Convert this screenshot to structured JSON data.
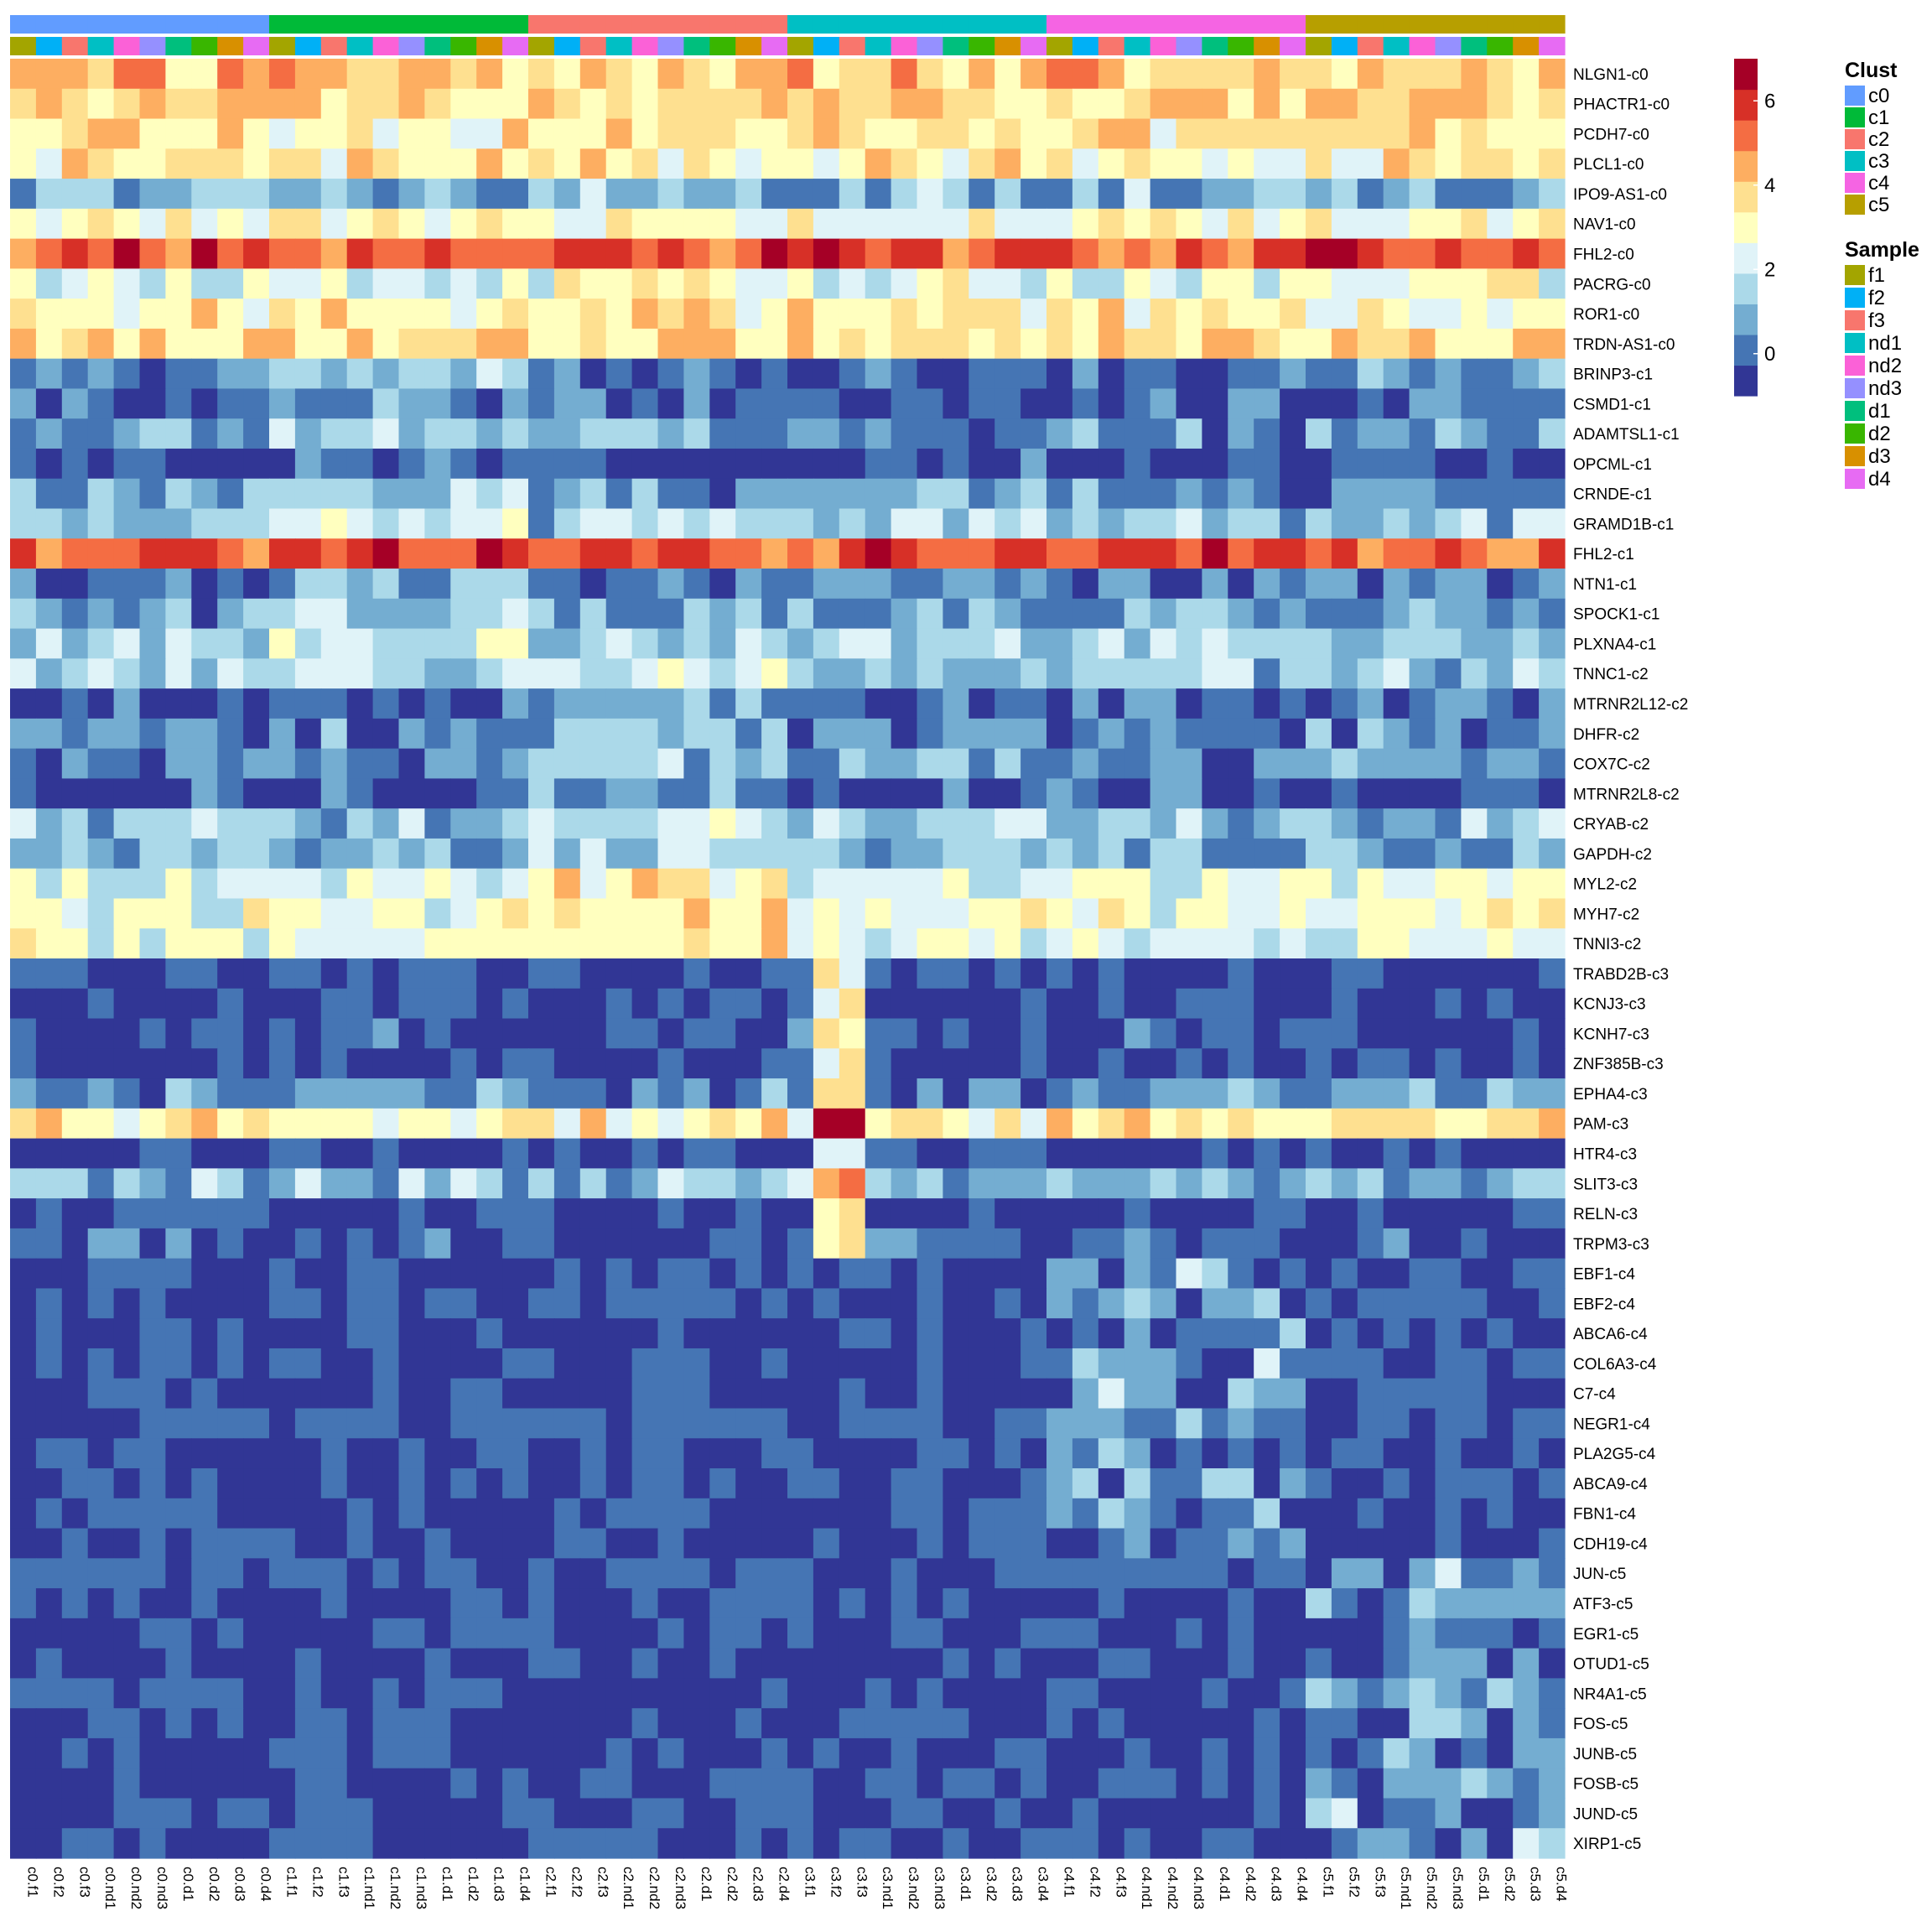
{
  "chart_data": {
    "type": "heatmap",
    "title": "",
    "color_scale": {
      "min": -1.0,
      "max": 7.0,
      "ticks": [
        0,
        2,
        4,
        6
      ],
      "colors": [
        "#313695",
        "#4575b4",
        "#74add1",
        "#abd9e9",
        "#e0f3f8",
        "#ffffbf",
        "#fee090",
        "#fdae61",
        "#f46d43",
        "#d73027",
        "#a50026"
      ]
    },
    "legend": {
      "cluster_title": "Clust",
      "clusters": [
        {
          "name": "c0",
          "color": "#619cff"
        },
        {
          "name": "c1",
          "color": "#00ba38"
        },
        {
          "name": "c2",
          "color": "#f8766d"
        },
        {
          "name": "c3",
          "color": "#00bfc4"
        },
        {
          "name": "c4",
          "color": "#f564e3"
        },
        {
          "name": "c5",
          "color": "#b79f00"
        }
      ],
      "sample_title": "Sample",
      "samples": [
        {
          "name": "f1",
          "color": "#a3a500"
        },
        {
          "name": "f2",
          "color": "#00b0f6"
        },
        {
          "name": "f3",
          "color": "#f8766d"
        },
        {
          "name": "nd1",
          "color": "#00bfc4"
        },
        {
          "name": "nd2",
          "color": "#fb61d7"
        },
        {
          "name": "nd3",
          "color": "#9590ff"
        },
        {
          "name": "d1",
          "color": "#00bf7d"
        },
        {
          "name": "d2",
          "color": "#39b600"
        },
        {
          "name": "d3",
          "color": "#d89000"
        },
        {
          "name": "d4",
          "color": "#e76bf3"
        }
      ]
    },
    "columns": [
      "c0.f1",
      "c0.f2",
      "c0.f3",
      "c0.nd1",
      "c0.nd2",
      "c0.nd3",
      "c0.d1",
      "c0.d2",
      "c0.d3",
      "c0.d4",
      "c1.f1",
      "c1.f2",
      "c1.f3",
      "c1.nd1",
      "c1.nd2",
      "c1.nd3",
      "c1.d1",
      "c1.d2",
      "c1.d3",
      "c1.d4",
      "c2.f1",
      "c2.f2",
      "c2.f3",
      "c2.nd1",
      "c2.nd2",
      "c2.nd3",
      "c2.d1",
      "c2.d2",
      "c2.d3",
      "c2.d4",
      "c3.f1",
      "c3.f2",
      "c3.f3",
      "c3.nd1",
      "c3.nd2",
      "c3.nd3",
      "c3.d1",
      "c3.d2",
      "c3.d3",
      "c3.d4",
      "c4.f1",
      "c4.f2",
      "c4.f3",
      "c4.nd1",
      "c4.nd2",
      "c4.nd3",
      "c4.d1",
      "c4.d2",
      "c4.d3",
      "c4.d4",
      "c5.f1",
      "c5.f2",
      "c5.f3",
      "c5.nd1",
      "c5.nd2",
      "c5.nd3",
      "c5.d1",
      "c5.d2",
      "c5.d3",
      "c5.d4"
    ],
    "rows": [
      {
        "gene": "NLGN1-c0",
        "base": 4.2
      },
      {
        "gene": "PHACTR1-c0",
        "base": 3.8
      },
      {
        "gene": "PCDH7-c0",
        "base": 3.5
      },
      {
        "gene": "PLCL1-c0",
        "base": 3.4
      },
      {
        "gene": "IPO9-AS1-c0",
        "base": 0.8
      },
      {
        "gene": "NAV1-c0",
        "base": 3.0
      },
      {
        "gene": "FHL2-c0",
        "base": 5.8
      },
      {
        "gene": "PACRG-c0",
        "base": 2.6
      },
      {
        "gene": "ROR1-c0",
        "base": 3.4
      },
      {
        "gene": "TRDN-AS1-c0",
        "base": 3.8
      },
      {
        "gene": "BRINP3-c1",
        "base": 0.0
      },
      {
        "gene": "CSMD1-c1",
        "base": -0.6
      },
      {
        "gene": "ADAMTSL1-c1",
        "base": 0.3
      },
      {
        "gene": "OPCML-c1",
        "base": -0.8
      },
      {
        "gene": "CRNDE-c1",
        "base": 0.3
      },
      {
        "gene": "GRAMD1B-c1",
        "base": 1.2
      },
      {
        "gene": "FHL2-c1",
        "base": 5.6
      },
      {
        "gene": "NTN1-c1",
        "base": 0.0
      },
      {
        "gene": "SPOCK1-c1",
        "base": 0.4
      },
      {
        "gene": "PLXNA4-c1",
        "base": 1.4
      },
      {
        "gene": "TNNC1-c2",
        "base": 1.2
      },
      {
        "gene": "MTRNR2L12-c2",
        "base": -0.4
      },
      {
        "gene": "DHFR-c2",
        "base": 0.0
      },
      {
        "gene": "COX7C-c2",
        "base": 0.2
      },
      {
        "gene": "MTRNR2L8-c2",
        "base": -0.6
      },
      {
        "gene": "CRYAB-c2",
        "base": 1.0
      },
      {
        "gene": "GAPDH-c2",
        "base": 0.6
      },
      {
        "gene": "MYL2-c2",
        "base": 2.2
      },
      {
        "gene": "MYH7-c2",
        "base": 2.6
      },
      {
        "gene": "TNNI3-c2",
        "base": 2.4
      },
      {
        "gene": "TRABD2B-c3",
        "base": -0.9
      },
      {
        "gene": "KCNJ3-c3",
        "base": -0.9
      },
      {
        "gene": "KCNH7-c3",
        "base": -0.8
      },
      {
        "gene": "ZNF385B-c3",
        "base": -0.9
      },
      {
        "gene": "EPHA4-c3",
        "base": 0.2
      },
      {
        "gene": "PAM-c3",
        "base": 3.4
      },
      {
        "gene": "HTR4-c3",
        "base": -0.8
      },
      {
        "gene": "SLIT3-c3",
        "base": 0.8
      },
      {
        "gene": "RELN-c3",
        "base": -0.9
      },
      {
        "gene": "TRPM3-c3",
        "base": -0.6
      },
      {
        "gene": "EBF1-c4",
        "base": -0.8
      },
      {
        "gene": "EBF2-c4",
        "base": -0.8
      },
      {
        "gene": "ABCA6-c4",
        "base": -0.8
      },
      {
        "gene": "COL6A3-c4",
        "base": -0.8
      },
      {
        "gene": "C7-c4",
        "base": -0.8
      },
      {
        "gene": "NEGR1-c4",
        "base": -0.7
      },
      {
        "gene": "PLA2G5-c4",
        "base": -0.7
      },
      {
        "gene": "ABCA9-c4",
        "base": -0.8
      },
      {
        "gene": "FBN1-c4",
        "base": -0.8
      },
      {
        "gene": "CDH19-c4",
        "base": -0.8
      },
      {
        "gene": "JUN-c5",
        "base": -0.5
      },
      {
        "gene": "ATF3-c5",
        "base": -0.9
      },
      {
        "gene": "EGR1-c5",
        "base": -0.9
      },
      {
        "gene": "OTUD1-c5",
        "base": -0.9
      },
      {
        "gene": "NR4A1-c5",
        "base": -0.9
      },
      {
        "gene": "FOS-c5",
        "base": -0.9
      },
      {
        "gene": "JUNB-c5",
        "base": -0.9
      },
      {
        "gene": "FOSB-c5",
        "base": -0.9
      },
      {
        "gene": "JUND-c5",
        "base": -0.8
      },
      {
        "gene": "XIRP1-c5",
        "base": -0.8
      }
    ]
  }
}
